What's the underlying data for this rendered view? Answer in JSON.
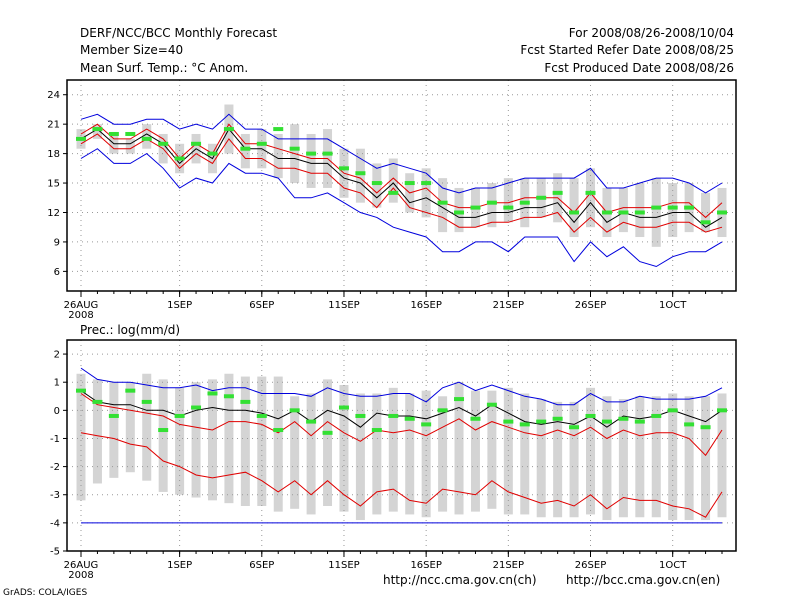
{
  "header": {
    "left": [
      "DERF/NCC/BCC Monthly Forecast",
      "Member Size=40",
      "Mean Surf. Temp.: °C Anom."
    ],
    "right": [
      "For 2008/08/26-2008/10/04",
      "Fcst Started Refer Date 2008/08/25",
      "Fcst Produced Date 2008/08/26"
    ]
  },
  "footer": {
    "grads": "GrADS: COLA/IGES",
    "url_ncc": "http://ncc.cma.gov.cn(ch)",
    "url_bcc": "http://bcc.cma.gov.cn(en)"
  },
  "colors": {
    "mean": "#000000",
    "red": "#e00000",
    "blue": "#0000dd",
    "green": "#33e033",
    "bar": "#d4d4d4",
    "grid": "#999999"
  },
  "chart_data": [
    {
      "type": "line",
      "title": "Mean Surf. Temp.: °C Anom.",
      "x_labels": [
        "26AUG",
        "1SEP",
        "6SEP",
        "11SEP",
        "16SEP",
        "21SEP",
        "26SEP",
        "1OCT"
      ],
      "x_sublabel": "2008",
      "x_label_days": [
        0,
        6,
        11,
        16,
        21,
        26,
        31,
        36
      ],
      "y_ticks": [
        6,
        9,
        12,
        15,
        18,
        21,
        24
      ],
      "ylim": [
        4,
        25.5
      ],
      "days": 40,
      "series": [
        {
          "name": "mean",
          "values": [
            19.5,
            20.5,
            19.0,
            19.0,
            20.0,
            19.0,
            17.0,
            18.5,
            17.5,
            20.5,
            18.5,
            18.5,
            17.5,
            17.5,
            17.0,
            17.0,
            15.5,
            15.0,
            13.5,
            15.0,
            13.0,
            13.5,
            12.5,
            11.5,
            11.5,
            12.0,
            12.0,
            12.5,
            12.5,
            13.0,
            11.0,
            13.0,
            11.0,
            12.0,
            11.5,
            11.5,
            12.0,
            12.0,
            10.5,
            11.5
          ]
        },
        {
          "name": "upper_red",
          "values": [
            20.0,
            21.0,
            19.5,
            19.5,
            20.5,
            19.5,
            17.5,
            19.0,
            18.0,
            21.0,
            19.0,
            19.0,
            18.5,
            18.0,
            17.5,
            17.5,
            16.0,
            15.5,
            14.0,
            15.5,
            14.0,
            14.5,
            13.0,
            12.5,
            12.5,
            13.0,
            13.0,
            13.5,
            13.5,
            13.5,
            12.0,
            14.0,
            12.0,
            12.5,
            12.5,
            12.5,
            13.0,
            13.0,
            11.5,
            13.0
          ]
        },
        {
          "name": "lower_red",
          "values": [
            19.0,
            20.0,
            18.5,
            18.5,
            19.5,
            18.5,
            16.5,
            18.0,
            17.0,
            19.5,
            17.5,
            17.5,
            16.5,
            16.5,
            16.0,
            16.0,
            14.5,
            14.0,
            12.5,
            14.5,
            12.5,
            12.0,
            11.5,
            10.5,
            10.5,
            11.0,
            11.0,
            11.5,
            11.5,
            12.0,
            10.0,
            11.5,
            10.0,
            11.0,
            10.5,
            10.5,
            11.0,
            11.0,
            10.0,
            10.5
          ]
        },
        {
          "name": "upper_blue",
          "values": [
            21.5,
            22.0,
            21.0,
            21.0,
            21.5,
            21.5,
            20.5,
            21.0,
            20.5,
            22.0,
            20.5,
            20.5,
            19.5,
            19.5,
            19.5,
            19.5,
            18.5,
            17.5,
            16.5,
            17.0,
            16.5,
            16.0,
            14.5,
            14.0,
            14.5,
            14.5,
            15.0,
            15.5,
            15.5,
            15.5,
            15.5,
            16.5,
            14.5,
            14.5,
            15.0,
            15.5,
            15.5,
            15.0,
            14.0,
            15.0
          ]
        },
        {
          "name": "lower_blue",
          "values": [
            17.5,
            18.5,
            17.0,
            17.0,
            18.0,
            16.5,
            14.5,
            15.5,
            15.0,
            17.0,
            16.0,
            16.0,
            15.5,
            13.5,
            13.5,
            14.0,
            13.0,
            12.0,
            11.5,
            10.5,
            10.0,
            9.5,
            8.0,
            8.0,
            9.0,
            9.0,
            8.0,
            9.5,
            9.5,
            9.5,
            7.0,
            9.0,
            7.5,
            8.5,
            7.0,
            6.5,
            7.5,
            8.0,
            8.0,
            9.0
          ]
        },
        {
          "name": "box_top",
          "values": [
            20.5,
            21.0,
            20.0,
            19.5,
            21.0,
            20.0,
            19.0,
            20.0,
            19.0,
            23.0,
            20.0,
            20.5,
            20.0,
            21.0,
            20.0,
            20.5,
            18.5,
            18.5,
            17.0,
            17.5,
            16.0,
            16.5,
            15.5,
            14.5,
            14.5,
            15.0,
            15.5,
            15.5,
            15.5,
            16.0,
            15.5,
            16.5,
            14.5,
            14.5,
            15.0,
            15.5,
            15.0,
            15.0,
            14.0,
            14.5
          ]
        },
        {
          "name": "box_bottom",
          "values": [
            18.5,
            19.5,
            18.0,
            18.0,
            18.5,
            17.0,
            16.0,
            17.0,
            16.0,
            18.0,
            16.5,
            16.5,
            15.5,
            15.0,
            14.5,
            14.5,
            13.5,
            13.0,
            12.5,
            13.0,
            12.0,
            11.5,
            10.0,
            10.0,
            10.5,
            10.5,
            11.0,
            10.5,
            11.5,
            11.0,
            9.5,
            10.5,
            9.5,
            10.0,
            9.5,
            8.5,
            9.5,
            10.0,
            10.0,
            9.5
          ]
        },
        {
          "name": "control",
          "values": [
            19.5,
            20.5,
            20.0,
            20.0,
            19.5,
            19.0,
            17.5,
            19.0,
            18.0,
            20.5,
            18.5,
            19.0,
            20.5,
            18.5,
            18.0,
            18.0,
            16.5,
            16.0,
            15.0,
            14.0,
            15.0,
            15.0,
            13.0,
            12.0,
            12.5,
            13.0,
            12.5,
            13.0,
            13.5,
            14.0,
            12.0,
            14.0,
            12.0,
            12.0,
            12.0,
            12.5,
            12.5,
            12.5,
            11.0,
            12.0
          ]
        }
      ]
    },
    {
      "type": "line",
      "title": "Prec.: log(mm/d)",
      "x_labels": [
        "26AUG",
        "1SEP",
        "6SEP",
        "11SEP",
        "16SEP",
        "21SEP",
        "26SEP",
        "1OCT"
      ],
      "x_sublabel": "2008",
      "x_label_days": [
        0,
        6,
        11,
        16,
        21,
        26,
        31,
        36
      ],
      "y_ticks": [
        -5,
        -4,
        -3,
        -2,
        -1,
        0,
        1,
        2
      ],
      "ylim": [
        -5,
        2.5
      ],
      "days": 40,
      "series": [
        {
          "name": "mean",
          "values": [
            0.7,
            0.3,
            0.2,
            0.2,
            0.0,
            0.0,
            -0.2,
            0.0,
            0.1,
            0.0,
            0.0,
            -0.1,
            -0.3,
            0.0,
            -0.4,
            0.0,
            -0.2,
            -0.6,
            -0.1,
            -0.2,
            -0.2,
            -0.3,
            -0.1,
            0.1,
            -0.2,
            0.2,
            -0.1,
            -0.4,
            -0.5,
            -0.4,
            -0.5,
            -0.2,
            -0.6,
            -0.2,
            -0.3,
            -0.2,
            0.0,
            -0.2,
            -0.4,
            0.0
          ]
        },
        {
          "name": "upper_red",
          "values": [
            0.6,
            0.2,
            0.1,
            0.0,
            -0.1,
            -0.2,
            -0.5,
            -0.6,
            -0.7,
            -0.4,
            -0.4,
            -0.5,
            -0.8,
            -0.4,
            -0.9,
            -0.4,
            -0.8,
            -1.1,
            -0.7,
            -0.8,
            -0.7,
            -0.9,
            -0.6,
            -0.3,
            -0.7,
            -0.4,
            -0.6,
            -0.8,
            -0.9,
            -0.7,
            -0.9,
            -0.6,
            -1.0,
            -0.7,
            -0.9,
            -0.8,
            -0.8,
            -1.0,
            -1.6,
            -0.7
          ]
        },
        {
          "name": "lower_red",
          "values": [
            -0.8,
            -0.9,
            -1.0,
            -1.2,
            -1.3,
            -1.8,
            -2.0,
            -2.3,
            -2.4,
            -2.3,
            -2.2,
            -2.5,
            -2.9,
            -2.5,
            -3.0,
            -2.5,
            -3.0,
            -3.4,
            -2.9,
            -2.8,
            -3.2,
            -3.3,
            -2.8,
            -2.9,
            -3.0,
            -2.5,
            -2.9,
            -3.1,
            -3.3,
            -3.2,
            -3.4,
            -3.0,
            -3.5,
            -3.1,
            -3.2,
            -3.2,
            -3.4,
            -3.5,
            -3.8,
            -2.9
          ]
        },
        {
          "name": "upper_blue",
          "values": [
            1.5,
            1.1,
            1.0,
            1.0,
            0.9,
            0.8,
            0.8,
            0.9,
            0.7,
            0.8,
            0.8,
            0.6,
            0.6,
            0.6,
            0.5,
            0.8,
            0.6,
            0.5,
            0.5,
            0.6,
            0.6,
            0.3,
            0.8,
            1.0,
            0.7,
            0.9,
            0.7,
            0.5,
            0.4,
            0.2,
            0.2,
            0.6,
            0.3,
            0.3,
            0.5,
            0.4,
            0.4,
            0.4,
            0.5,
            0.8
          ]
        },
        {
          "name": "lower_blue",
          "values": [
            -4,
            -4,
            -4,
            -4,
            -4,
            -4,
            -4,
            -4,
            -4,
            -4,
            -4,
            -4,
            -4,
            -4,
            -4,
            -4,
            -4,
            -4,
            -4,
            -4,
            -4,
            -4,
            -4,
            -4,
            -4,
            -4,
            -4,
            -4,
            -4,
            -4,
            -4,
            -4,
            -4,
            -4,
            -4,
            -4,
            -4,
            -4,
            -4,
            -4
          ]
        },
        {
          "name": "box_top",
          "values": [
            1.3,
            1.1,
            1.0,
            1.0,
            1.3,
            1.1,
            0.8,
            1.0,
            1.1,
            1.3,
            1.2,
            1.2,
            1.2,
            0.5,
            0.6,
            1.1,
            0.9,
            0.6,
            0.6,
            0.8,
            0.6,
            0.7,
            0.5,
            1.0,
            0.7,
            0.7,
            0.8,
            0.6,
            0.4,
            0.3,
            0.3,
            0.8,
            0.5,
            0.4,
            0.5,
            0.5,
            0.6,
            0.5,
            0.5,
            0.6
          ]
        },
        {
          "name": "box_bottom",
          "values": [
            -3.2,
            -2.6,
            -2.4,
            -2.2,
            -2.5,
            -2.9,
            -3.0,
            -3.1,
            -3.2,
            -3.3,
            -3.4,
            -3.4,
            -3.6,
            -3.5,
            -3.7,
            -3.4,
            -3.6,
            -3.9,
            -3.7,
            -3.6,
            -3.7,
            -3.8,
            -3.6,
            -3.7,
            -3.6,
            -3.5,
            -3.7,
            -3.7,
            -3.8,
            -3.8,
            -3.8,
            -3.7,
            -3.9,
            -3.8,
            -3.8,
            -3.8,
            -3.9,
            -3.9,
            -3.9,
            -3.8
          ]
        },
        {
          "name": "control",
          "values": [
            0.7,
            0.3,
            -0.2,
            0.7,
            0.3,
            -0.7,
            -0.2,
            0.1,
            0.6,
            0.5,
            0.3,
            -0.2,
            -0.7,
            0.0,
            -0.4,
            -0.8,
            0.1,
            -0.2,
            -0.7,
            -0.2,
            -0.3,
            -0.5,
            0.0,
            0.4,
            -0.3,
            0.2,
            -0.4,
            -0.5,
            -0.4,
            -0.3,
            -0.6,
            -0.2,
            -0.4,
            -0.3,
            -0.4,
            -0.2,
            0.0,
            -0.5,
            -0.6,
            0.0
          ]
        }
      ]
    }
  ]
}
